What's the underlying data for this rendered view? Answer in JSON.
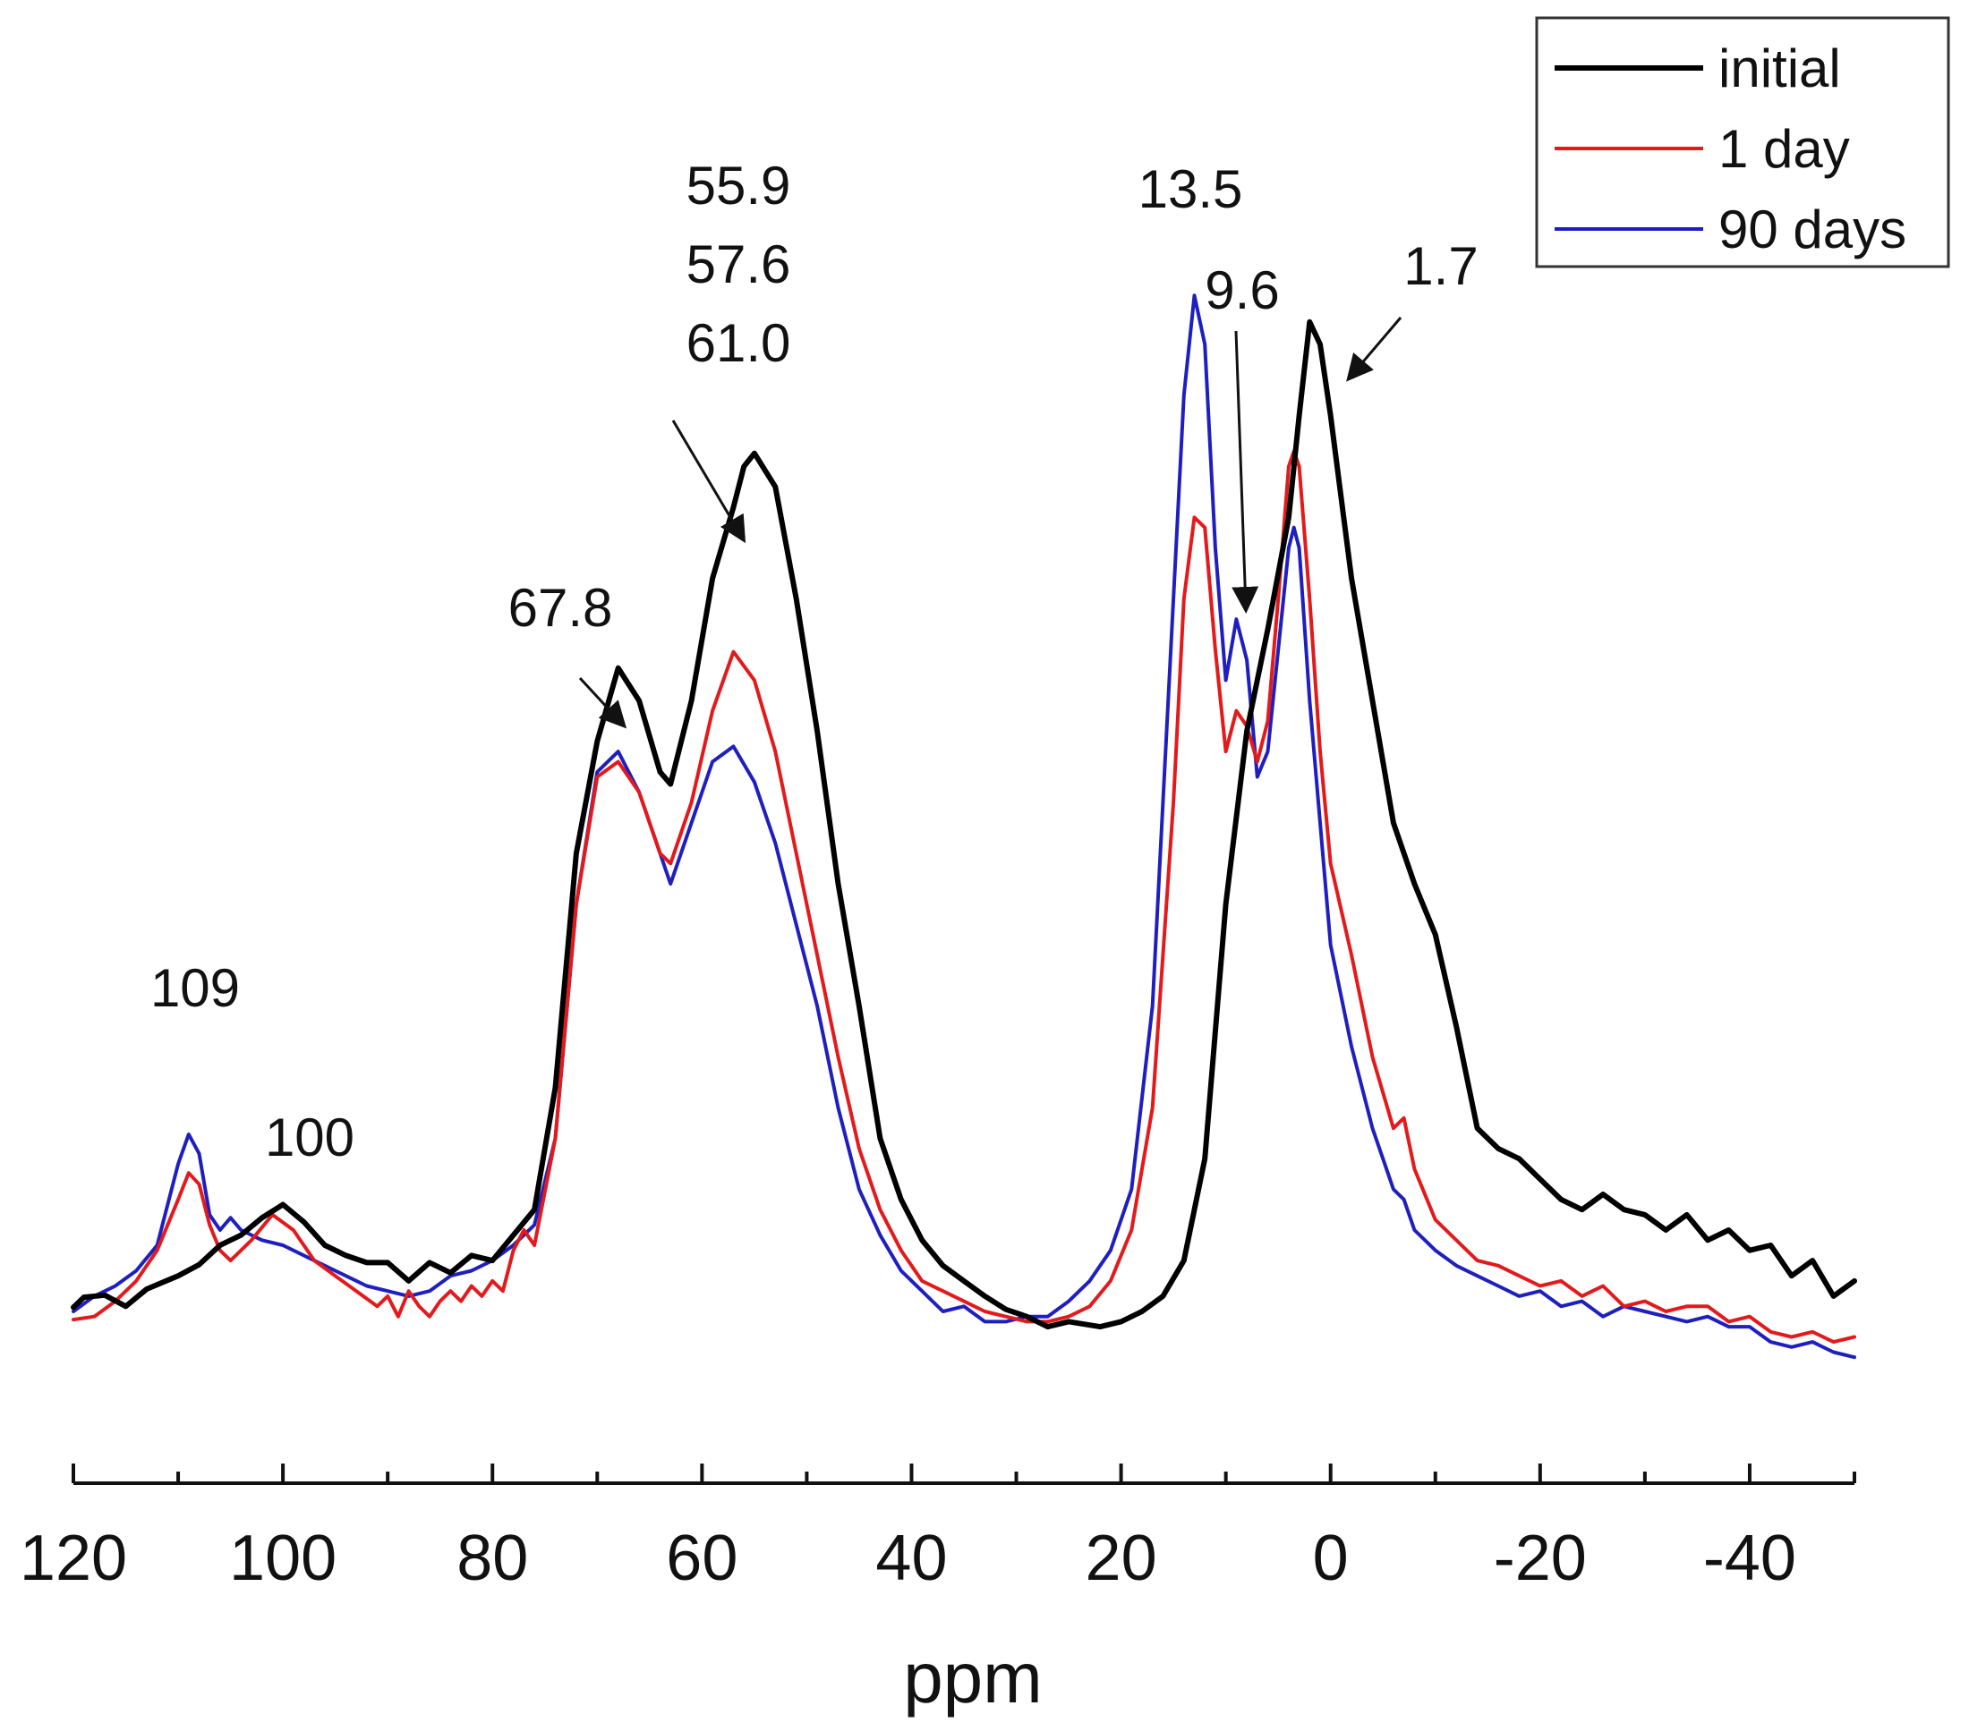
{
  "chart_data": {
    "type": "line",
    "xlabel": "ppm",
    "ylabel": "",
    "xlim": [
      120,
      -50
    ],
    "ylim": [
      0,
      100
    ],
    "x_reversed": true,
    "xticks": [
      120,
      100,
      80,
      60,
      40,
      20,
      0,
      -20,
      -40
    ],
    "xtick_labels": [
      "120",
      "100",
      "80",
      "60",
      "40",
      "20",
      "0",
      "-20",
      "-40"
    ],
    "yaxis_visible": false,
    "grid": false,
    "legend": {
      "position": "top-right",
      "boxed": true
    },
    "series": [
      {
        "name": "initial",
        "color": "#000000",
        "points": [
          [
            120,
            0.4
          ],
          [
            119,
            1.4
          ],
          [
            117,
            1.6
          ],
          [
            115,
            0.5
          ],
          [
            113,
            2.2
          ],
          [
            110,
            3.5
          ],
          [
            108,
            4.6
          ],
          [
            106,
            6.5
          ],
          [
            104,
            7.5
          ],
          [
            102,
            9.2
          ],
          [
            100,
            10.5
          ],
          [
            98,
            8.8
          ],
          [
            96,
            6.5
          ],
          [
            94,
            5.5
          ],
          [
            92,
            4.8
          ],
          [
            90,
            4.8
          ],
          [
            88,
            3.0
          ],
          [
            86,
            4.8
          ],
          [
            84,
            3.8
          ],
          [
            82,
            5.5
          ],
          [
            80,
            5.0
          ],
          [
            78,
            7.5
          ],
          [
            76,
            10.0
          ],
          [
            74,
            22.0
          ],
          [
            72,
            45.0
          ],
          [
            70,
            56.0
          ],
          [
            68,
            63.2
          ],
          [
            66,
            60.0
          ],
          [
            64,
            53.0
          ],
          [
            63,
            51.8
          ],
          [
            61,
            60.0
          ],
          [
            59,
            72.0
          ],
          [
            57,
            79.0
          ],
          [
            56,
            83.0
          ],
          [
            55,
            84.3
          ],
          [
            53,
            81.0
          ],
          [
            51,
            70.0
          ],
          [
            49,
            57.0
          ],
          [
            47,
            42.0
          ],
          [
            45,
            30.0
          ],
          [
            43,
            17.0
          ],
          [
            41,
            11.0
          ],
          [
            39,
            7.0
          ],
          [
            37,
            4.5
          ],
          [
            35,
            3.0
          ],
          [
            33,
            1.5
          ],
          [
            31,
            0.2
          ],
          [
            29,
            -0.5
          ],
          [
            27,
            -1.5
          ],
          [
            25,
            -1.0
          ],
          [
            22,
            -1.5
          ],
          [
            20,
            -1.0
          ],
          [
            18,
            0.0
          ],
          [
            16,
            1.5
          ],
          [
            14,
            5.0
          ],
          [
            12,
            15.0
          ],
          [
            10,
            40.0
          ],
          [
            8,
            57.0
          ],
          [
            6,
            67.0
          ],
          [
            4,
            78.0
          ],
          [
            3,
            88.0
          ],
          [
            2,
            97.2
          ],
          [
            1,
            95.0
          ],
          [
            0,
            88.0
          ],
          [
            -2,
            72.0
          ],
          [
            -4,
            60.0
          ],
          [
            -6,
            48.0
          ],
          [
            -8,
            42.0
          ],
          [
            -10,
            37.0
          ],
          [
            -12,
            28.0
          ],
          [
            -14,
            18.0
          ],
          [
            -16,
            16.0
          ],
          [
            -18,
            15.0
          ],
          [
            -20,
            13.0
          ],
          [
            -22,
            11.0
          ],
          [
            -24,
            10.0
          ],
          [
            -26,
            11.5
          ],
          [
            -28,
            10.0
          ],
          [
            -30,
            9.5
          ],
          [
            -32,
            8.0
          ],
          [
            -34,
            9.5
          ],
          [
            -36,
            7.0
          ],
          [
            -38,
            8.0
          ],
          [
            -40,
            6.0
          ],
          [
            -42,
            6.5
          ],
          [
            -44,
            3.5
          ],
          [
            -46,
            5.0
          ],
          [
            -48,
            1.5
          ],
          [
            -50,
            3.0
          ]
        ]
      },
      {
        "name": "1 day",
        "color": "#e31a1c",
        "points": [
          [
            120,
            -0.8
          ],
          [
            118,
            -0.5
          ],
          [
            116,
            1.0
          ],
          [
            114,
            3.0
          ],
          [
            112,
            6.0
          ],
          [
            110,
            11.0
          ],
          [
            109,
            13.6
          ],
          [
            108,
            12.5
          ],
          [
            107,
            8.5
          ],
          [
            106,
            6.0
          ],
          [
            105,
            5.0
          ],
          [
            103,
            7.0
          ],
          [
            101,
            9.5
          ],
          [
            99,
            8.0
          ],
          [
            97,
            5.0
          ],
          [
            95,
            3.5
          ],
          [
            93,
            2.0
          ],
          [
            91,
            0.5
          ],
          [
            90,
            1.5
          ],
          [
            89,
            -0.5
          ],
          [
            88,
            2.0
          ],
          [
            87,
            0.5
          ],
          [
            86,
            -0.5
          ],
          [
            85,
            1.0
          ],
          [
            84,
            2.0
          ],
          [
            83,
            1.0
          ],
          [
            82,
            2.5
          ],
          [
            81,
            1.5
          ],
          [
            80,
            3.0
          ],
          [
            79,
            2.0
          ],
          [
            78,
            6.0
          ],
          [
            77,
            8.0
          ],
          [
            76,
            6.5
          ],
          [
            74,
            17.0
          ],
          [
            72,
            40.0
          ],
          [
            70,
            52.5
          ],
          [
            68,
            54.0
          ],
          [
            66,
            51.0
          ],
          [
            64,
            45.0
          ],
          [
            63,
            44.0
          ],
          [
            61,
            50.0
          ],
          [
            59,
            59.0
          ],
          [
            57,
            64.8
          ],
          [
            55,
            62.0
          ],
          [
            53,
            55.0
          ],
          [
            51,
            45.0
          ],
          [
            49,
            35.0
          ],
          [
            47,
            25.0
          ],
          [
            45,
            16.0
          ],
          [
            43,
            10.0
          ],
          [
            41,
            6.0
          ],
          [
            39,
            3.0
          ],
          [
            37,
            2.0
          ],
          [
            35,
            1.0
          ],
          [
            33,
            0.0
          ],
          [
            31,
            -0.5
          ],
          [
            29,
            -1.0
          ],
          [
            27,
            -1.0
          ],
          [
            25,
            -0.5
          ],
          [
            23,
            0.5
          ],
          [
            21,
            3.0
          ],
          [
            19,
            8.0
          ],
          [
            17,
            20.0
          ],
          [
            15,
            50.0
          ],
          [
            14,
            70.0
          ],
          [
            13,
            78.0
          ],
          [
            12,
            77.0
          ],
          [
            11,
            65.0
          ],
          [
            10,
            55.0
          ],
          [
            9,
            59.0
          ],
          [
            8,
            57.5
          ],
          [
            7,
            54.0
          ],
          [
            6,
            58.0
          ],
          [
            5,
            70.0
          ],
          [
            4,
            83.0
          ],
          [
            3.5,
            84.5
          ],
          [
            3,
            83.0
          ],
          [
            2,
            70.0
          ],
          [
            1,
            55.0
          ],
          [
            0,
            44.0
          ],
          [
            -2,
            35.0
          ],
          [
            -4,
            25.0
          ],
          [
            -6,
            18.0
          ],
          [
            -7,
            19.0
          ],
          [
            -8,
            14.0
          ],
          [
            -10,
            9.0
          ],
          [
            -12,
            7.0
          ],
          [
            -14,
            5.0
          ],
          [
            -16,
            4.5
          ],
          [
            -18,
            3.5
          ],
          [
            -20,
            2.5
          ],
          [
            -22,
            3.0
          ],
          [
            -24,
            1.5
          ],
          [
            -26,
            2.5
          ],
          [
            -28,
            0.5
          ],
          [
            -30,
            1.0
          ],
          [
            -32,
            0.0
          ],
          [
            -34,
            0.5
          ],
          [
            -36,
            0.5
          ],
          [
            -38,
            -1.0
          ],
          [
            -40,
            -0.5
          ],
          [
            -42,
            -2.0
          ],
          [
            -44,
            -2.5
          ],
          [
            -46,
            -2.0
          ],
          [
            -48,
            -3.0
          ],
          [
            -50,
            -2.5
          ]
        ]
      },
      {
        "name": "90 days",
        "color": "#1f1fbf",
        "points": [
          [
            120,
            0.0
          ],
          [
            118,
            1.5
          ],
          [
            116,
            2.5
          ],
          [
            114,
            4.0
          ],
          [
            112,
            6.5
          ],
          [
            110,
            14.5
          ],
          [
            109,
            17.4
          ],
          [
            108,
            15.5
          ],
          [
            107,
            9.5
          ],
          [
            106,
            8.0
          ],
          [
            105,
            9.2
          ],
          [
            104,
            8.0
          ],
          [
            102,
            7.0
          ],
          [
            100,
            6.5
          ],
          [
            98,
            5.5
          ],
          [
            96,
            4.5
          ],
          [
            94,
            3.5
          ],
          [
            92,
            2.5
          ],
          [
            90,
            2.0
          ],
          [
            88,
            1.5
          ],
          [
            86,
            2.0
          ],
          [
            84,
            3.5
          ],
          [
            82,
            4.0
          ],
          [
            80,
            5.0
          ],
          [
            78,
            6.5
          ],
          [
            76,
            8.5
          ],
          [
            74,
            17.0
          ],
          [
            72,
            40.0
          ],
          [
            70,
            53.0
          ],
          [
            68,
            55.0
          ],
          [
            66,
            51.0
          ],
          [
            64,
            45.0
          ],
          [
            63,
            42.0
          ],
          [
            61,
            48.0
          ],
          [
            59,
            54.0
          ],
          [
            57,
            55.5
          ],
          [
            55,
            52.0
          ],
          [
            53,
            46.0
          ],
          [
            51,
            38.0
          ],
          [
            49,
            30.0
          ],
          [
            47,
            20.0
          ],
          [
            45,
            12.0
          ],
          [
            43,
            7.5
          ],
          [
            41,
            4.0
          ],
          [
            39,
            2.0
          ],
          [
            37,
            0.0
          ],
          [
            35,
            0.5
          ],
          [
            33,
            -1.0
          ],
          [
            31,
            -1.0
          ],
          [
            29,
            -0.5
          ],
          [
            27,
            -0.5
          ],
          [
            25,
            1.0
          ],
          [
            23,
            3.0
          ],
          [
            21,
            6.0
          ],
          [
            19,
            12.0
          ],
          [
            17,
            30.0
          ],
          [
            15,
            70.0
          ],
          [
            14,
            90.0
          ],
          [
            13,
            99.8
          ],
          [
            12,
            95.0
          ],
          [
            11,
            75.0
          ],
          [
            10,
            62.0
          ],
          [
            9,
            68.0
          ],
          [
            8,
            64.0
          ],
          [
            7,
            52.5
          ],
          [
            6,
            55.0
          ],
          [
            5,
            65.0
          ],
          [
            4,
            75.0
          ],
          [
            3.5,
            77.0
          ],
          [
            3,
            75.0
          ],
          [
            2,
            60.0
          ],
          [
            1,
            48.0
          ],
          [
            0,
            36.0
          ],
          [
            -2,
            26.0
          ],
          [
            -4,
            18.0
          ],
          [
            -6,
            12.0
          ],
          [
            -7,
            11.0
          ],
          [
            -8,
            8.0
          ],
          [
            -10,
            6.0
          ],
          [
            -12,
            4.5
          ],
          [
            -14,
            3.5
          ],
          [
            -16,
            2.5
          ],
          [
            -18,
            1.5
          ],
          [
            -20,
            2.0
          ],
          [
            -22,
            0.5
          ],
          [
            -24,
            1.0
          ],
          [
            -26,
            -0.5
          ],
          [
            -28,
            0.5
          ],
          [
            -30,
            0.0
          ],
          [
            -32,
            -0.5
          ],
          [
            -34,
            -1.0
          ],
          [
            -36,
            -0.5
          ],
          [
            -38,
            -1.5
          ],
          [
            -40,
            -1.5
          ],
          [
            -42,
            -3.0
          ],
          [
            -44,
            -3.5
          ],
          [
            -46,
            -3.0
          ],
          [
            -48,
            -4.0
          ],
          [
            -50,
            -4.5
          ]
        ]
      }
    ],
    "annotations": [
      {
        "text": "109",
        "x": 109,
        "y": 17.4,
        "arrow": false
      },
      {
        "text": "100",
        "x": 100,
        "y": 10.5,
        "arrow": false
      },
      {
        "text": "67.8",
        "x": 67.8,
        "y": 63.2,
        "arrow": true
      },
      {
        "text": "55.9\n57.6\n61.0",
        "lines": [
          "55.9",
          "57.6",
          "61.0"
        ],
        "x": 55.9,
        "y": 84.3,
        "arrow": true
      },
      {
        "text": "13.5",
        "x": 13.5,
        "y": 99.8,
        "arrow": false
      },
      {
        "text": "9.6",
        "x": 9.6,
        "y": 60.0,
        "arrow": true
      },
      {
        "text": "1.7",
        "x": 1.7,
        "y": 97.2,
        "arrow": true
      }
    ]
  }
}
